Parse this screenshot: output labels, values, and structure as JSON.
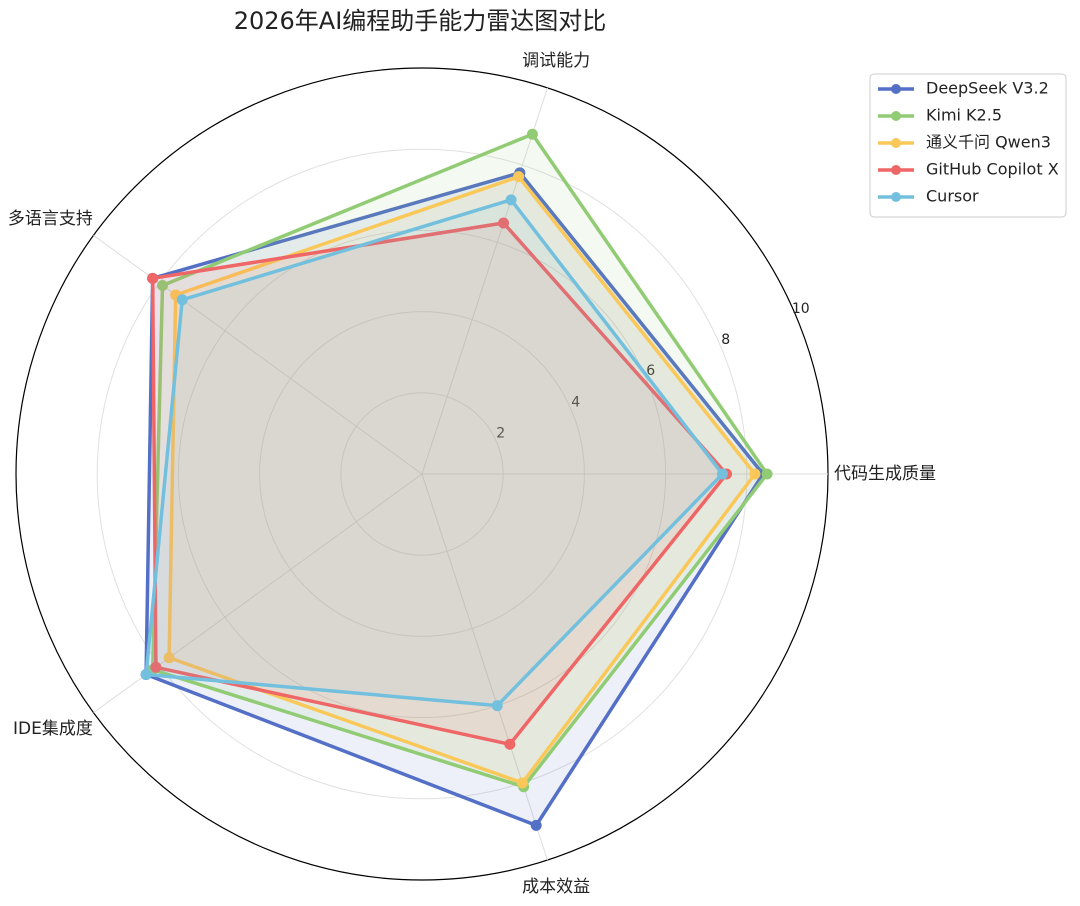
{
  "chart_data": {
    "type": "radar",
    "title": "2026年AI编程助手能力雷达图对比",
    "categories": [
      "代码生成质量",
      "调试能力",
      "多语言支持",
      "IDE集成度",
      "成本效益"
    ],
    "rlim": [
      0,
      10
    ],
    "rticks": [
      2,
      4,
      6,
      8,
      10
    ],
    "grid": true,
    "legend": "upper right",
    "series": [
      {
        "name": "DeepSeek V3.2",
        "color": "#5470c6",
        "values": [
          8.4,
          7.8,
          8.2,
          8.4,
          9.1
        ]
      },
      {
        "name": "Kimi K2.5",
        "color": "#91cc75",
        "values": [
          8.5,
          8.8,
          7.9,
          8.2,
          8.1
        ]
      },
      {
        "name": "通义千问 Qwen3",
        "color": "#fac858",
        "values": [
          8.2,
          7.7,
          7.5,
          7.7,
          8.0
        ]
      },
      {
        "name": "GitHub Copilot X",
        "color": "#ee6666",
        "values": [
          7.5,
          6.5,
          8.2,
          8.1,
          7.0
        ]
      },
      {
        "name": "Cursor",
        "color": "#73c0de",
        "values": [
          7.4,
          7.1,
          7.3,
          8.4,
          6.0
        ]
      }
    ]
  }
}
